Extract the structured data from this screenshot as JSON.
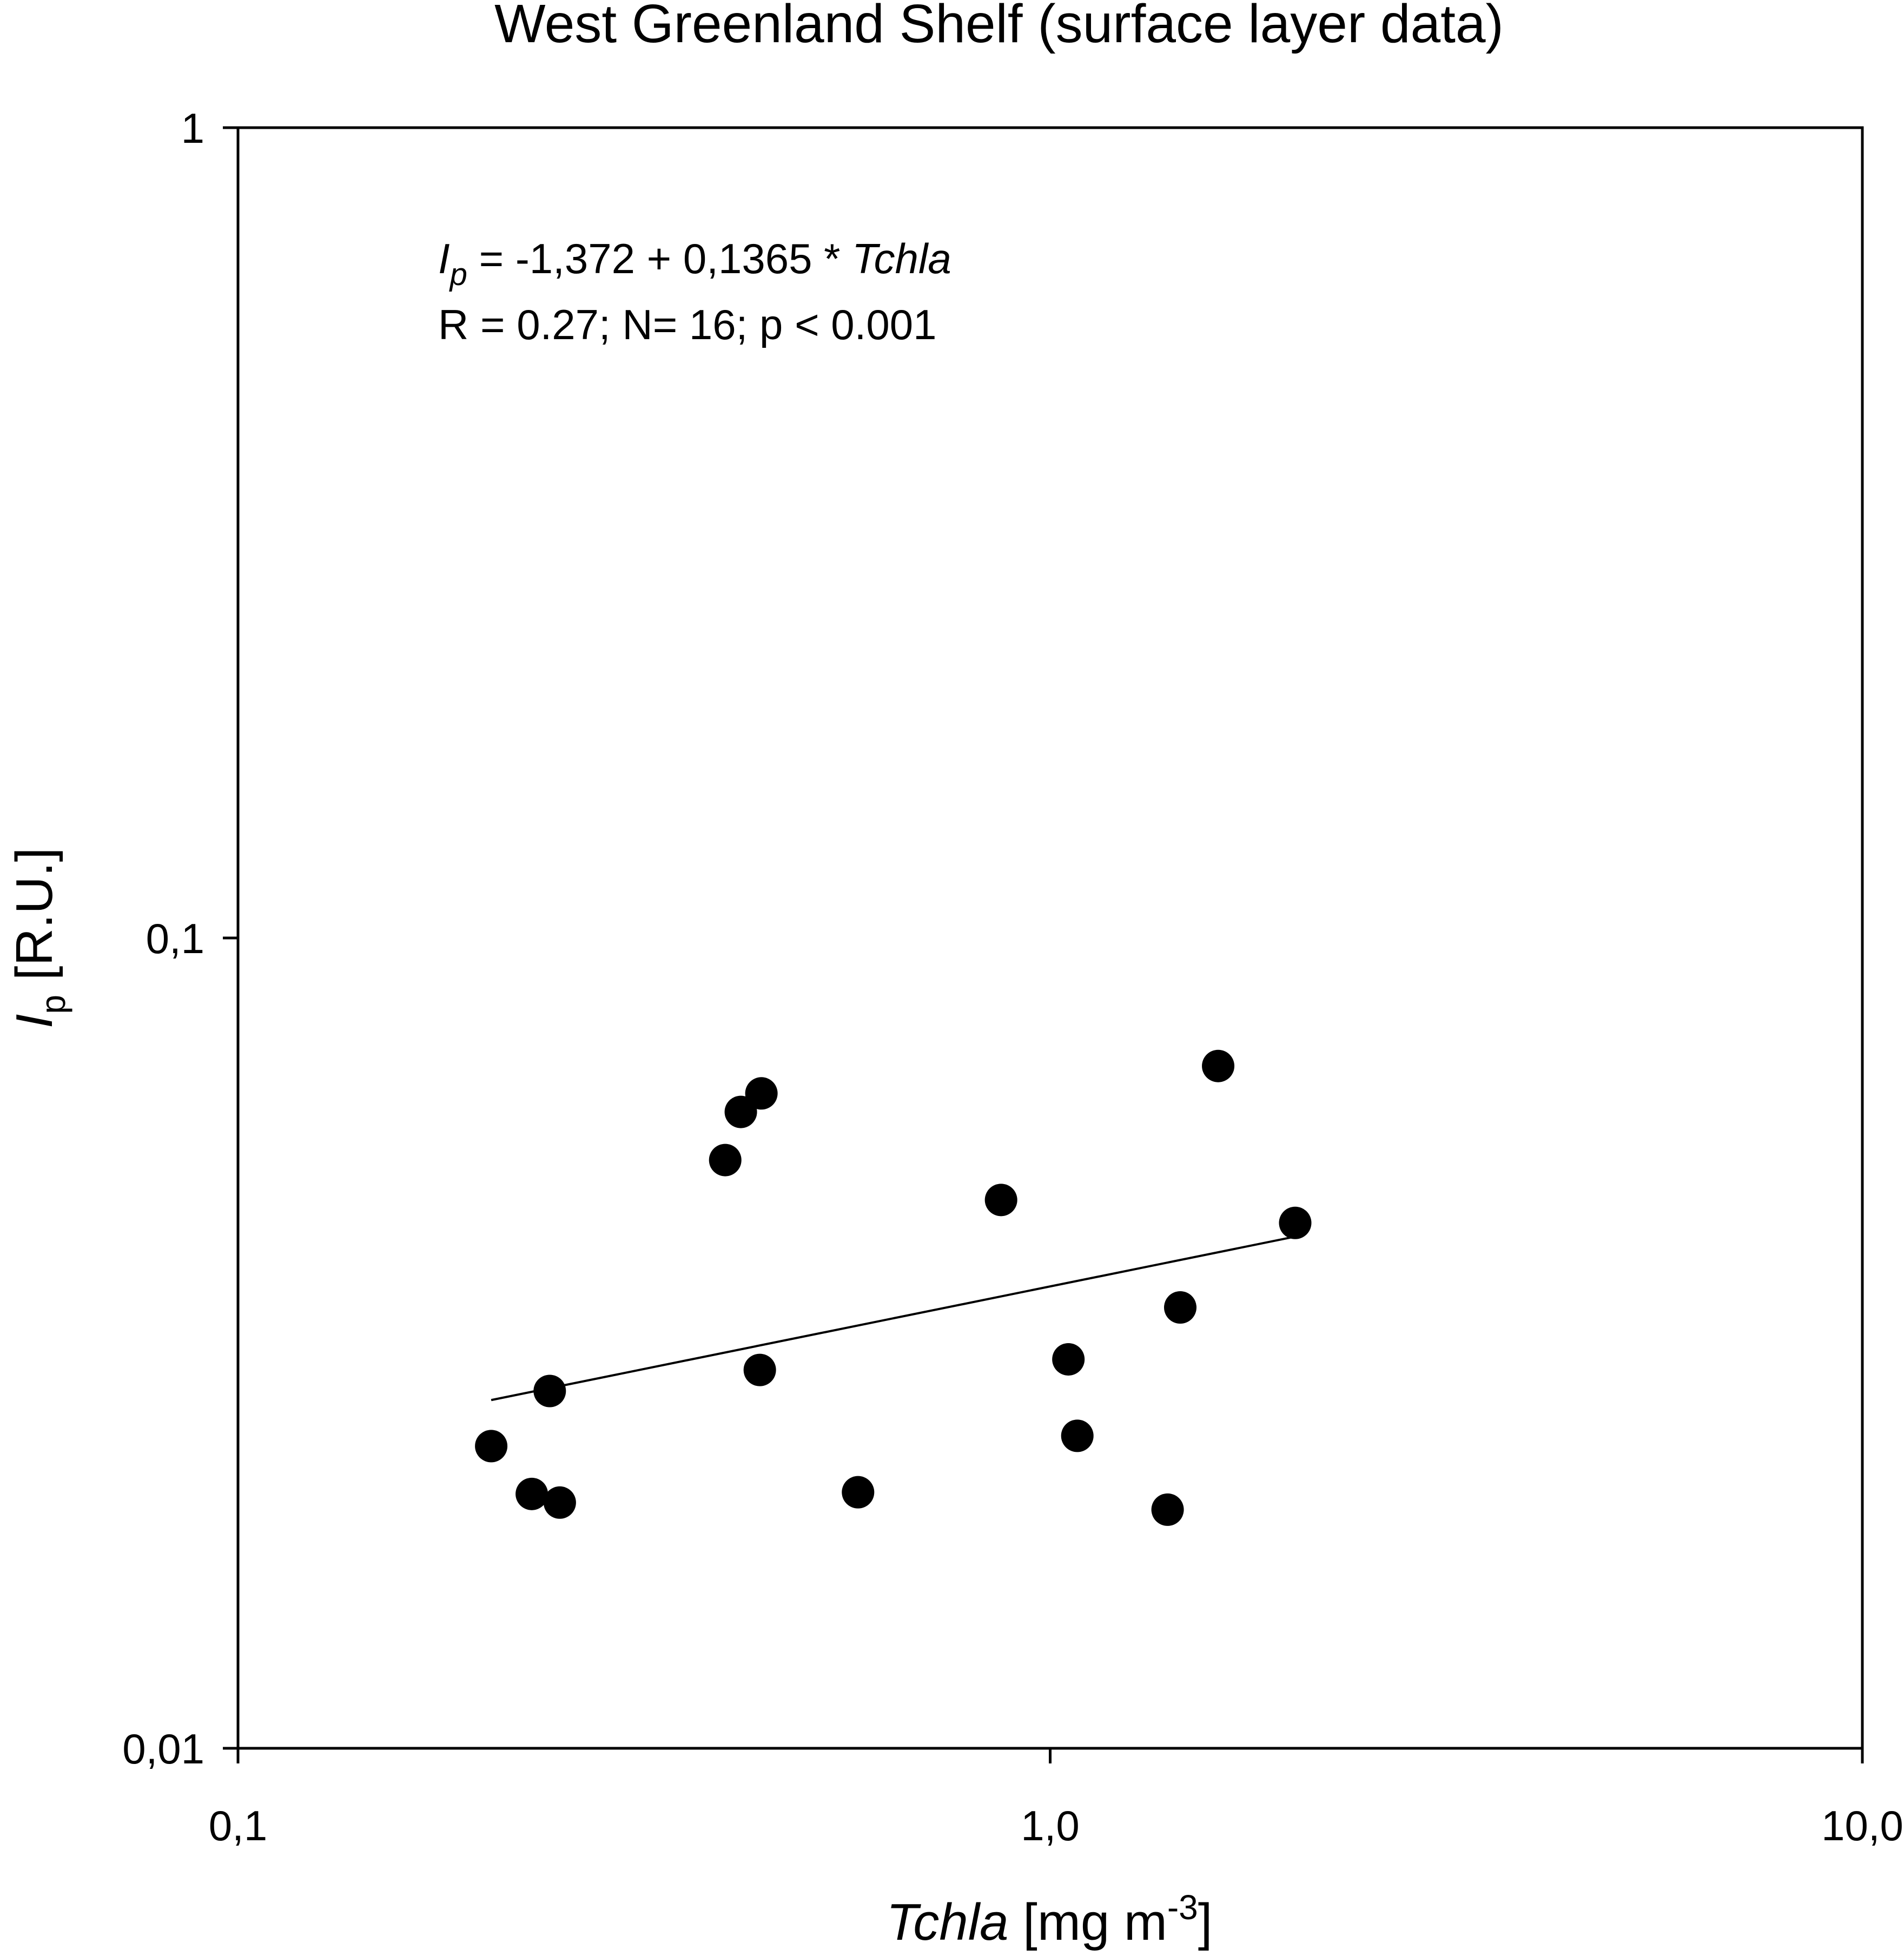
{
  "chart_data": {
    "type": "scatter",
    "title": "West Greenland Shelf (surface layer data)",
    "xlabel": {
      "italic_part": "Tchla",
      "text_part": " [mg m",
      "superscript": "-3",
      "closing": "]"
    },
    "ylabel": {
      "italic_part": "I",
      "subscript": "p",
      "text_part": " [R.U.]"
    },
    "x_scale": "log",
    "y_scale": "log",
    "xlim": [
      0.1,
      10.0
    ],
    "ylim": [
      0.01,
      1
    ],
    "x_ticks": [
      {
        "value": 0.1,
        "label": "0,1"
      },
      {
        "value": 1.0,
        "label": "1,0"
      },
      {
        "value": 10.0,
        "label": "10,0"
      }
    ],
    "y_ticks": [
      {
        "value": 0.01,
        "label": "0,01"
      },
      {
        "value": 0.1,
        "label": "0,1"
      },
      {
        "value": 1,
        "label": "1"
      }
    ],
    "grid": false,
    "legend": "none",
    "marker_color": "#000000",
    "points": [
      {
        "x": 0.205,
        "y": 0.0236
      },
      {
        "x": 0.23,
        "y": 0.0206
      },
      {
        "x": 0.242,
        "y": 0.0276
      },
      {
        "x": 0.249,
        "y": 0.0201
      },
      {
        "x": 0.398,
        "y": 0.0532
      },
      {
        "x": 0.416,
        "y": 0.061
      },
      {
        "x": 0.441,
        "y": 0.0643
      },
      {
        "x": 0.439,
        "y": 0.0293
      },
      {
        "x": 0.58,
        "y": 0.0207
      },
      {
        "x": 0.87,
        "y": 0.0475
      },
      {
        "x": 1.053,
        "y": 0.0302
      },
      {
        "x": 1.08,
        "y": 0.0243
      },
      {
        "x": 1.395,
        "y": 0.0197
      },
      {
        "x": 1.446,
        "y": 0.035
      },
      {
        "x": 1.61,
        "y": 0.0695
      },
      {
        "x": 2.003,
        "y": 0.0445
      }
    ],
    "regression_line": {
      "x_range": [
        0.205,
        2.003
      ],
      "y_range": [
        0.0269,
        0.0428
      ]
    },
    "annotations": {
      "equation": {
        "italic_lhs": "I",
        "lhs_subscript": "p",
        "middle": " = -1,372 + 0,1365 * ",
        "italic_rhs": "Tchla"
      },
      "stats": "R = 0.27; N= 16; p < 0.001"
    }
  }
}
